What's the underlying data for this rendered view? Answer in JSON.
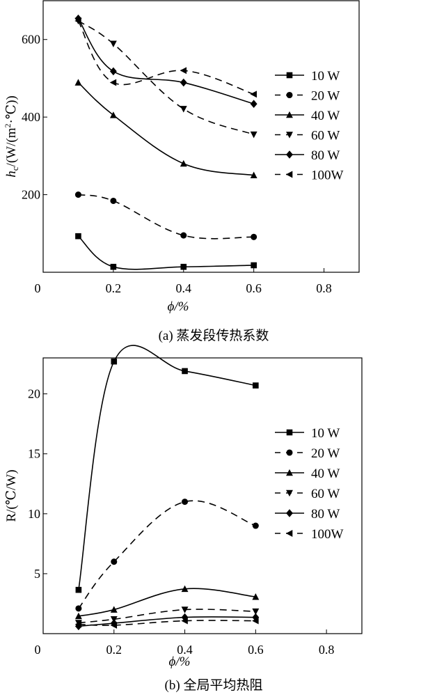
{
  "chart_data": [
    {
      "type": "line",
      "caption": "(a) 蒸发段传热系数",
      "xlabel": "ϕ/%",
      "ylabel": "h_c/(W/(m²·℃))",
      "ylabel_main": "h",
      "ylabel_sub": "c",
      "ylabel_rest": "/(W/(m",
      "ylabel_sup": "2",
      "ylabel_end": "·℃))",
      "xlim": [
        0,
        0.9
      ],
      "ylim": [
        0,
        700
      ],
      "xticks": [
        0.2,
        0.4,
        0.6,
        0.8
      ],
      "xtick_labels": [
        "0.2",
        "0.4",
        "0.6",
        "0.8"
      ],
      "yticks": [
        200,
        400,
        600
      ],
      "ytick_labels": [
        "200",
        "400",
        "600"
      ],
      "origin_label": "0",
      "grid": false,
      "legend_position": "right",
      "x": [
        0.1,
        0.2,
        0.4,
        0.6
      ],
      "series": [
        {
          "name": "10 W",
          "marker": "square",
          "dash": false,
          "values": [
            93,
            14,
            14,
            18
          ]
        },
        {
          "name": "20 W",
          "marker": "circle",
          "dash": true,
          "values": [
            200,
            184,
            95,
            91
          ]
        },
        {
          "name": "40 W",
          "marker": "triangle-up",
          "dash": false,
          "values": [
            489,
            405,
            280,
            250
          ]
        },
        {
          "name": "60 W",
          "marker": "triangle-down",
          "dash": true,
          "values": [
            648,
            589,
            421,
            355
          ]
        },
        {
          "name": "80 W",
          "marker": "diamond",
          "dash": false,
          "values": [
            654,
            518,
            489,
            434
          ]
        },
        {
          "name": "100W",
          "marker": "triangle-left",
          "dash": true,
          "values": [
            648,
            489,
            520,
            459
          ]
        }
      ]
    },
    {
      "type": "line",
      "caption": "(b) 全局平均热阻",
      "xlabel": "ϕ/%",
      "ylabel": "R/(℃/W)",
      "xlim": [
        0,
        0.9
      ],
      "ylim": [
        0,
        23
      ],
      "xticks": [
        0.2,
        0.4,
        0.6,
        0.8
      ],
      "xtick_labels": [
        "0.2",
        "0.4",
        "0.6",
        "0.8"
      ],
      "yticks": [
        5,
        10,
        15,
        20
      ],
      "ytick_labels": [
        "5",
        "10",
        "15",
        "20"
      ],
      "origin_label": "0",
      "grid": false,
      "legend_position": "right",
      "x": [
        0.1,
        0.2,
        0.4,
        0.6
      ],
      "series": [
        {
          "name": "10 W",
          "marker": "square",
          "dash": false,
          "values": [
            3.65,
            22.7,
            21.9,
            20.7
          ]
        },
        {
          "name": "20 W",
          "marker": "circle",
          "dash": true,
          "values": [
            2.1,
            6.0,
            11.0,
            9.0
          ]
        },
        {
          "name": "40 W",
          "marker": "triangle-up",
          "dash": false,
          "values": [
            1.46,
            2.0,
            3.73,
            3.07
          ]
        },
        {
          "name": "60 W",
          "marker": "triangle-down",
          "dash": true,
          "values": [
            0.9,
            1.2,
            2.0,
            1.85
          ]
        },
        {
          "name": "80 W",
          "marker": "diamond",
          "dash": false,
          "values": [
            0.62,
            0.87,
            1.36,
            1.36
          ]
        },
        {
          "name": "100W",
          "marker": "triangle-left",
          "dash": true,
          "values": [
            0.78,
            0.7,
            1.07,
            1.07
          ]
        }
      ]
    }
  ]
}
